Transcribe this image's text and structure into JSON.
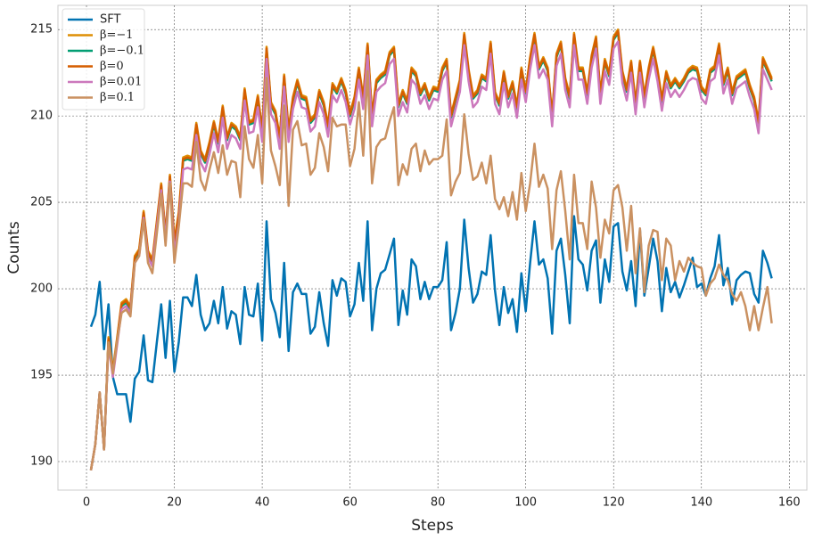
{
  "chart_data": {
    "type": "line",
    "xlabel": "Steps",
    "ylabel": "Counts",
    "xlim": [
      -6.5,
      164
    ],
    "ylim": [
      188.35,
      216.4
    ],
    "xticks": [
      0,
      20,
      40,
      60,
      80,
      100,
      120,
      140,
      160
    ],
    "yticks": [
      190,
      195,
      200,
      205,
      210,
      215
    ],
    "grid": true,
    "legend": "upper left",
    "x": [
      1,
      2,
      3,
      4,
      5,
      6,
      7,
      8,
      9,
      10,
      11,
      12,
      13,
      14,
      15,
      16,
      17,
      18,
      19,
      20,
      21,
      22,
      23,
      24,
      25,
      26,
      27,
      28,
      29,
      30,
      31,
      32,
      33,
      34,
      35,
      36,
      37,
      38,
      39,
      40,
      41,
      42,
      43,
      44,
      45,
      46,
      47,
      48,
      49,
      50,
      51,
      52,
      53,
      54,
      55,
      56,
      57,
      58,
      59,
      60,
      61,
      62,
      63,
      64,
      65,
      66,
      67,
      68,
      69,
      70,
      71,
      72,
      73,
      74,
      75,
      76,
      77,
      78,
      79,
      80,
      81,
      82,
      83,
      84,
      85,
      86,
      87,
      88,
      89,
      90,
      91,
      92,
      93,
      94,
      95,
      96,
      97,
      98,
      99,
      100,
      101,
      102,
      103,
      104,
      105,
      106,
      107,
      108,
      109,
      110,
      111,
      112,
      113,
      114,
      115,
      116,
      117,
      118,
      119,
      120,
      121,
      122,
      123,
      124,
      125,
      126,
      127,
      128,
      129,
      130,
      131,
      132,
      133,
      134,
      135,
      136,
      137,
      138,
      139,
      140,
      141,
      142,
      143,
      144,
      145,
      146,
      147,
      148,
      149,
      150,
      151,
      152,
      153,
      154,
      155,
      156
    ],
    "series": [
      {
        "name": "SFT",
        "color": "#0173b2",
        "values": [
          197.8,
          198.5,
          200.4,
          196.5,
          199.1,
          194.9,
          193.9,
          193.9,
          193.9,
          192.3,
          194.8,
          195.2,
          197.3,
          194.7,
          194.6,
          196.9,
          199.1,
          196.0,
          199.3,
          195.2,
          196.9,
          199.5,
          199.5,
          199.0,
          200.8,
          198.5,
          197.6,
          198.0,
          199.3,
          198.0,
          200.1,
          197.7,
          198.7,
          198.5,
          196.8,
          200.1,
          198.5,
          198.4,
          200.3,
          197.0,
          203.9,
          199.4,
          198.6,
          197.2,
          201.5,
          196.4,
          199.8,
          200.3,
          199.7,
          199.7,
          197.4,
          197.8,
          199.8,
          198.0,
          196.7,
          200.5,
          199.6,
          200.6,
          200.4,
          198.4,
          199.1,
          201.5,
          199.3,
          203.9,
          197.6,
          200.0,
          200.9,
          201.1,
          202.0,
          202.9,
          197.9,
          199.9,
          198.5,
          201.7,
          201.3,
          199.4,
          200.4,
          199.4,
          200.1,
          200.1,
          200.5,
          202.7,
          197.6,
          198.6,
          200.0,
          204.0,
          201.2,
          199.2,
          199.7,
          201.0,
          200.8,
          203.1,
          199.9,
          197.9,
          200.1,
          198.6,
          199.4,
          197.5,
          200.9,
          198.7,
          201.5,
          203.9,
          201.4,
          201.7,
          200.6,
          197.4,
          202.2,
          202.9,
          200.8,
          198.0,
          204.2,
          201.7,
          201.4,
          199.9,
          202.2,
          202.8,
          199.2,
          201.7,
          200.4,
          203.6,
          203.8,
          201.0,
          199.9,
          201.6,
          199.0,
          203.4,
          199.6,
          201.2,
          202.9,
          201.6,
          198.7,
          201.2,
          199.8,
          200.4,
          199.5,
          200.2,
          201.0,
          201.8,
          200.1,
          200.3,
          199.6,
          200.6,
          201.3,
          203.1,
          200.2,
          201.2,
          199.1,
          200.5,
          200.8,
          201.0,
          200.9,
          199.7,
          199.2,
          202.2,
          201.5,
          200.6
        ]
      },
      {
        "name": "β=−1",
        "color": "#de8f05",
        "values": [
          189.5,
          191.0,
          194.0,
          190.7,
          197.2,
          195.3,
          197.2,
          199.2,
          199.4,
          199.0,
          201.9,
          202.3,
          204.5,
          202.2,
          201.7,
          203.9,
          206.1,
          203.2,
          206.6,
          202.8,
          204.4,
          207.6,
          207.7,
          207.6,
          209.6,
          208.0,
          207.5,
          208.5,
          209.7,
          208.6,
          210.6,
          208.8,
          209.6,
          209.4,
          208.8,
          211.6,
          209.7,
          209.8,
          211.2,
          209.2,
          214.0,
          210.8,
          210.3,
          208.8,
          212.4,
          209.2,
          211.1,
          212.1,
          211.2,
          211.1,
          209.8,
          210.1,
          211.5,
          210.8,
          209.5,
          211.9,
          211.5,
          212.2,
          211.5,
          210.2,
          211.1,
          212.8,
          211.1,
          214.2,
          210.1,
          212.1,
          212.4,
          212.6,
          213.7,
          214.0,
          210.7,
          211.5,
          210.9,
          212.8,
          212.5,
          211.4,
          211.9,
          211.1,
          211.7,
          211.6,
          212.8,
          213.3,
          210.1,
          211.1,
          212.1,
          214.8,
          212.7,
          211.2,
          211.5,
          212.4,
          212.2,
          214.3,
          211.4,
          210.8,
          212.6,
          211.2,
          212.0,
          210.6,
          212.8,
          211.5,
          213.4,
          214.8,
          212.9,
          213.4,
          212.8,
          210.1,
          213.6,
          214.3,
          212.2,
          211.2,
          214.8,
          212.8,
          212.8,
          211.4,
          213.5,
          214.6,
          211.4,
          213.3,
          212.5,
          214.6,
          215.0,
          212.6,
          211.6,
          213.2,
          210.8,
          213.2,
          211.2,
          212.8,
          214.0,
          212.7,
          211.0,
          212.6,
          211.8,
          212.2,
          211.8,
          212.2,
          212.7,
          212.9,
          212.8,
          211.7,
          211.4,
          212.7,
          212.9,
          214.2,
          212.0,
          212.8,
          211.4,
          212.3,
          212.5,
          212.7,
          211.8,
          211.1,
          209.7,
          213.4,
          212.8,
          212.2
        ]
      },
      {
        "name": "β=−0.1",
        "color": "#029e73",
        "values": [
          189.5,
          191.0,
          194.0,
          190.7,
          197.0,
          195.1,
          197.0,
          199.0,
          199.2,
          198.8,
          201.7,
          202.1,
          204.3,
          202.0,
          201.5,
          203.7,
          205.9,
          203.0,
          206.4,
          202.6,
          204.2,
          207.4,
          207.5,
          207.4,
          209.4,
          207.8,
          207.3,
          208.3,
          209.5,
          208.4,
          210.4,
          208.6,
          209.4,
          209.2,
          208.6,
          211.4,
          209.5,
          209.6,
          211.0,
          209.0,
          213.8,
          210.6,
          210.1,
          208.6,
          212.2,
          209.0,
          210.9,
          211.9,
          211.0,
          210.9,
          209.6,
          209.9,
          211.3,
          210.6,
          209.3,
          211.7,
          211.3,
          212.0,
          211.3,
          210.0,
          210.9,
          212.6,
          210.9,
          214.0,
          209.9,
          211.9,
          212.2,
          212.4,
          213.5,
          213.8,
          210.5,
          211.3,
          210.7,
          212.6,
          212.3,
          211.2,
          211.7,
          210.9,
          211.5,
          211.4,
          212.6,
          213.1,
          209.9,
          210.9,
          211.9,
          214.6,
          212.5,
          211.0,
          211.3,
          212.2,
          212.0,
          214.1,
          211.2,
          210.6,
          212.4,
          211.0,
          211.8,
          210.4,
          212.6,
          211.3,
          213.2,
          214.6,
          212.7,
          213.2,
          212.6,
          209.9,
          213.4,
          214.1,
          212.0,
          211.0,
          214.6,
          212.6,
          212.6,
          211.2,
          213.3,
          214.4,
          211.2,
          213.1,
          212.3,
          214.4,
          214.8,
          212.4,
          211.4,
          213.0,
          210.6,
          213.0,
          211.0,
          212.6,
          213.8,
          212.5,
          210.8,
          212.4,
          211.6,
          212.0,
          211.6,
          212.0,
          212.5,
          212.7,
          212.6,
          211.5,
          211.2,
          212.5,
          212.7,
          214.0,
          211.8,
          212.6,
          211.2,
          212.1,
          212.3,
          212.5,
          211.6,
          210.9,
          209.5,
          213.2,
          212.6,
          212.0
        ]
      },
      {
        "name": "β=0",
        "color": "#d55e00",
        "values": [
          189.5,
          191.0,
          194.0,
          190.7,
          197.1,
          195.2,
          197.1,
          199.1,
          199.3,
          198.9,
          201.8,
          202.2,
          204.4,
          202.1,
          201.6,
          203.8,
          206.0,
          203.1,
          206.5,
          202.7,
          204.3,
          207.5,
          207.6,
          207.5,
          209.5,
          207.9,
          207.4,
          208.4,
          209.6,
          208.5,
          210.5,
          208.7,
          209.5,
          209.3,
          208.7,
          211.5,
          209.6,
          209.7,
          211.1,
          209.1,
          213.9,
          210.7,
          210.2,
          208.7,
          212.3,
          209.1,
          211.0,
          212.0,
          211.1,
          211.0,
          209.7,
          210.0,
          211.4,
          210.7,
          209.4,
          211.8,
          211.4,
          212.1,
          211.4,
          210.1,
          211.0,
          212.7,
          211.0,
          214.1,
          210.0,
          212.0,
          212.3,
          212.5,
          213.6,
          213.9,
          210.6,
          211.4,
          210.8,
          212.7,
          212.4,
          211.3,
          211.8,
          211.0,
          211.6,
          211.5,
          212.7,
          213.2,
          210.0,
          211.0,
          212.0,
          214.7,
          212.6,
          211.1,
          211.4,
          212.3,
          212.1,
          214.2,
          211.3,
          210.7,
          212.5,
          211.1,
          211.9,
          210.5,
          212.7,
          211.4,
          213.3,
          214.7,
          212.8,
          213.3,
          212.7,
          210.0,
          213.5,
          214.2,
          212.1,
          211.1,
          214.7,
          212.7,
          212.7,
          211.3,
          213.4,
          214.5,
          211.3,
          213.2,
          212.4,
          214.5,
          214.9,
          212.5,
          211.5,
          213.1,
          210.7,
          213.1,
          211.1,
          212.7,
          213.9,
          212.6,
          210.9,
          212.5,
          211.7,
          212.1,
          211.7,
          212.1,
          212.6,
          212.8,
          212.7,
          211.6,
          211.3,
          212.6,
          212.8,
          214.1,
          211.9,
          212.7,
          211.3,
          212.2,
          212.4,
          212.6,
          211.7,
          211.0,
          209.6,
          213.3,
          212.7,
          212.1
        ]
      },
      {
        "name": "β=0.01",
        "color": "#cc78bc",
        "values": [
          189.5,
          191.0,
          194.0,
          190.7,
          196.8,
          194.9,
          196.8,
          198.8,
          199.0,
          198.6,
          201.5,
          201.9,
          204.1,
          201.8,
          201.3,
          203.5,
          205.7,
          202.8,
          206.2,
          202.1,
          203.7,
          206.9,
          207.0,
          206.9,
          208.9,
          207.3,
          206.8,
          207.8,
          209.0,
          207.9,
          209.9,
          208.1,
          208.9,
          208.7,
          208.1,
          210.9,
          209.0,
          209.1,
          210.5,
          208.5,
          213.3,
          210.1,
          209.6,
          208.1,
          211.7,
          208.5,
          210.4,
          211.4,
          210.5,
          210.4,
          209.1,
          209.4,
          210.8,
          210.1,
          208.8,
          211.2,
          210.8,
          211.5,
          210.8,
          209.5,
          210.4,
          212.1,
          210.4,
          213.5,
          209.4,
          211.4,
          211.7,
          211.9,
          213.0,
          213.3,
          210.0,
          210.8,
          210.2,
          212.1,
          211.8,
          210.7,
          211.2,
          210.4,
          211.0,
          210.9,
          212.1,
          212.6,
          209.4,
          210.4,
          211.4,
          214.1,
          212.0,
          210.5,
          210.8,
          211.7,
          211.5,
          213.6,
          210.7,
          210.1,
          211.9,
          210.5,
          211.3,
          209.9,
          212.1,
          210.8,
          212.7,
          214.1,
          212.2,
          212.7,
          212.1,
          209.4,
          212.9,
          213.6,
          211.5,
          210.5,
          214.1,
          212.1,
          212.1,
          210.7,
          212.8,
          213.9,
          210.7,
          212.6,
          211.8,
          213.9,
          214.3,
          211.9,
          210.9,
          212.5,
          210.1,
          212.5,
          210.5,
          212.1,
          213.3,
          212.0,
          210.3,
          211.9,
          211.1,
          211.5,
          211.1,
          211.5,
          212.0,
          212.2,
          212.1,
          211.0,
          210.7,
          212.0,
          212.2,
          213.5,
          211.3,
          212.1,
          210.7,
          211.6,
          211.8,
          212.0,
          211.1,
          210.4,
          209.0,
          212.7,
          212.1,
          211.5
        ]
      },
      {
        "name": "β=0.1",
        "color": "#ca9161",
        "values": [
          189.5,
          191.0,
          194.0,
          190.7,
          196.9,
          195.1,
          197.0,
          198.6,
          198.8,
          198.4,
          201.5,
          201.9,
          204.0,
          201.5,
          200.9,
          203.2,
          205.5,
          202.5,
          206.1,
          201.5,
          203.6,
          206.1,
          206.1,
          205.9,
          208.5,
          206.3,
          205.7,
          206.9,
          207.9,
          206.7,
          208.3,
          206.6,
          207.4,
          207.3,
          205.3,
          209.4,
          207.5,
          207.0,
          208.9,
          206.1,
          212.2,
          208.0,
          207.1,
          206.0,
          210.6,
          204.8,
          209.2,
          209.7,
          208.3,
          208.4,
          206.6,
          207.0,
          209.0,
          208.2,
          206.8,
          209.9,
          209.4,
          209.5,
          209.5,
          207.1,
          208.1,
          210.8,
          207.7,
          212.6,
          206.1,
          208.2,
          208.6,
          208.7,
          209.7,
          210.5,
          206.0,
          207.2,
          206.6,
          208.1,
          208.4,
          206.8,
          208.0,
          207.2,
          207.5,
          207.5,
          207.7,
          209.8,
          205.4,
          206.2,
          206.7,
          210.1,
          207.8,
          206.3,
          206.5,
          207.3,
          206.1,
          207.7,
          205.2,
          204.6,
          205.3,
          204.2,
          205.6,
          204.0,
          206.7,
          204.5,
          206.1,
          208.4,
          205.9,
          206.6,
          205.8,
          202.3,
          205.7,
          206.8,
          204.5,
          201.7,
          206.6,
          203.8,
          203.8,
          202.3,
          206.2,
          204.7,
          201.8,
          204.0,
          203.2,
          205.7,
          206.0,
          204.7,
          202.2,
          204.8,
          200.9,
          203.5,
          199.8,
          202.5,
          203.4,
          203.3,
          200.5,
          202.9,
          202.5,
          200.5,
          201.6,
          201.0,
          201.8,
          201.5,
          201.3,
          201.2,
          199.6,
          200.3,
          200.6,
          201.4,
          200.8,
          200.5,
          199.7,
          199.3,
          199.8,
          199.0,
          197.6,
          199.0,
          197.6,
          198.9,
          200.1,
          198.0
        ]
      }
    ]
  }
}
